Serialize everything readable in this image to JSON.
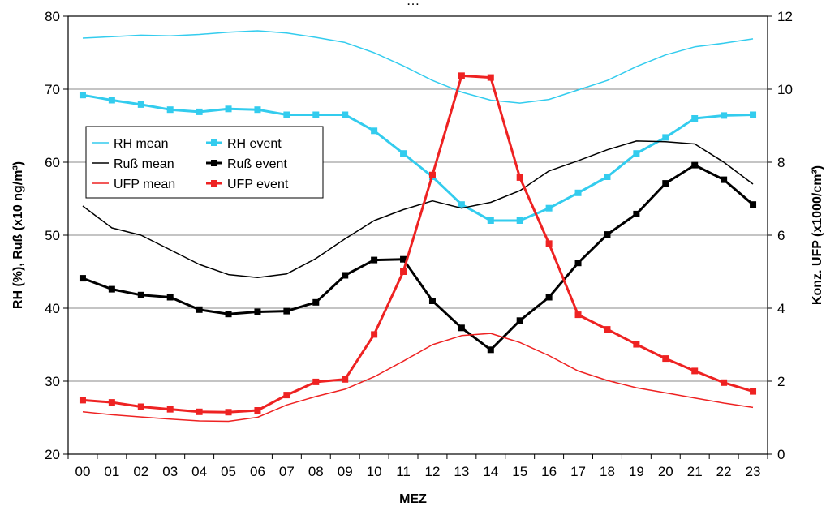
{
  "header_text": "…",
  "chart_data": {
    "type": "line",
    "x": [
      "00",
      "01",
      "02",
      "03",
      "04",
      "05",
      "06",
      "07",
      "08",
      "09",
      "10",
      "11",
      "12",
      "13",
      "14",
      "15",
      "16",
      "17",
      "18",
      "19",
      "20",
      "21",
      "22",
      "23"
    ],
    "xlabel": "MEZ",
    "ylabel_left": "RH (%), Ruß (x10 ng/m³)",
    "ylabel_right": "Konz. UFP (x1000/cm³)",
    "ylim_left": [
      20,
      80
    ],
    "ylim_right": [
      0,
      12
    ],
    "yticks_left": [
      "20",
      "30",
      "40",
      "50",
      "60",
      "70",
      "80"
    ],
    "yticks_right": [
      "0",
      "2",
      "4",
      "6",
      "8",
      "10",
      "12"
    ],
    "grid": true,
    "legend_position": "center-left",
    "series": [
      {
        "name": "RH mean",
        "axis": "left",
        "color": "#33ccee",
        "marker": false,
        "width": 1.5,
        "values": [
          77.0,
          77.2,
          77.4,
          77.3,
          77.5,
          77.8,
          78.0,
          77.7,
          77.1,
          76.4,
          75.0,
          73.2,
          71.2,
          69.6,
          68.5,
          68.1,
          68.6,
          69.9,
          71.2,
          73.1,
          74.7,
          75.8,
          76.3,
          76.9
        ]
      },
      {
        "name": "RH event",
        "axis": "left",
        "color": "#33ccee",
        "marker": true,
        "width": 3,
        "values": [
          69.2,
          68.5,
          67.9,
          67.2,
          66.9,
          67.3,
          67.2,
          66.5,
          66.5,
          66.5,
          64.3,
          61.2,
          58.0,
          54.2,
          52.0,
          52.0,
          53.7,
          55.8,
          58.0,
          61.2,
          63.4,
          66.0,
          66.4,
          66.5
        ]
      },
      {
        "name": "Ruß mean",
        "axis": "left",
        "color": "#000000",
        "marker": false,
        "width": 1.5,
        "values": [
          54.0,
          51.0,
          50.0,
          48.0,
          46.0,
          44.6,
          44.2,
          44.7,
          46.8,
          49.5,
          52.0,
          53.5,
          54.7,
          53.7,
          54.5,
          56.1,
          58.8,
          60.2,
          61.7,
          62.9,
          62.8,
          62.5,
          60.0,
          57.0
        ]
      },
      {
        "name": "Ruß event",
        "axis": "left",
        "color": "#000000",
        "marker": true,
        "width": 3,
        "values": [
          44.1,
          42.6,
          41.8,
          41.5,
          39.8,
          39.2,
          39.5,
          39.6,
          40.8,
          44.5,
          46.6,
          46.7,
          41.0,
          37.3,
          34.3,
          38.3,
          41.5,
          46.2,
          50.1,
          52.9,
          57.1,
          59.6,
          57.6,
          54.2
        ]
      },
      {
        "name": "UFP mean",
        "axis": "right",
        "color": "#ee2222",
        "marker": false,
        "width": 1.5,
        "values": [
          1.16,
          1.08,
          1.02,
          0.96,
          0.91,
          0.9,
          1.01,
          1.35,
          1.58,
          1.78,
          2.12,
          2.55,
          3.0,
          3.25,
          3.31,
          3.06,
          2.7,
          2.28,
          2.02,
          1.82,
          1.68,
          1.54,
          1.4,
          1.28
        ]
      },
      {
        "name": "UFP event",
        "axis": "right",
        "color": "#ee2222",
        "marker": true,
        "width": 3,
        "values": [
          1.48,
          1.42,
          1.3,
          1.23,
          1.16,
          1.15,
          1.2,
          1.62,
          1.98,
          2.05,
          3.28,
          5.0,
          7.65,
          10.37,
          10.32,
          7.58,
          5.77,
          3.82,
          3.42,
          3.01,
          2.62,
          2.28,
          1.96,
          1.72
        ]
      }
    ]
  }
}
